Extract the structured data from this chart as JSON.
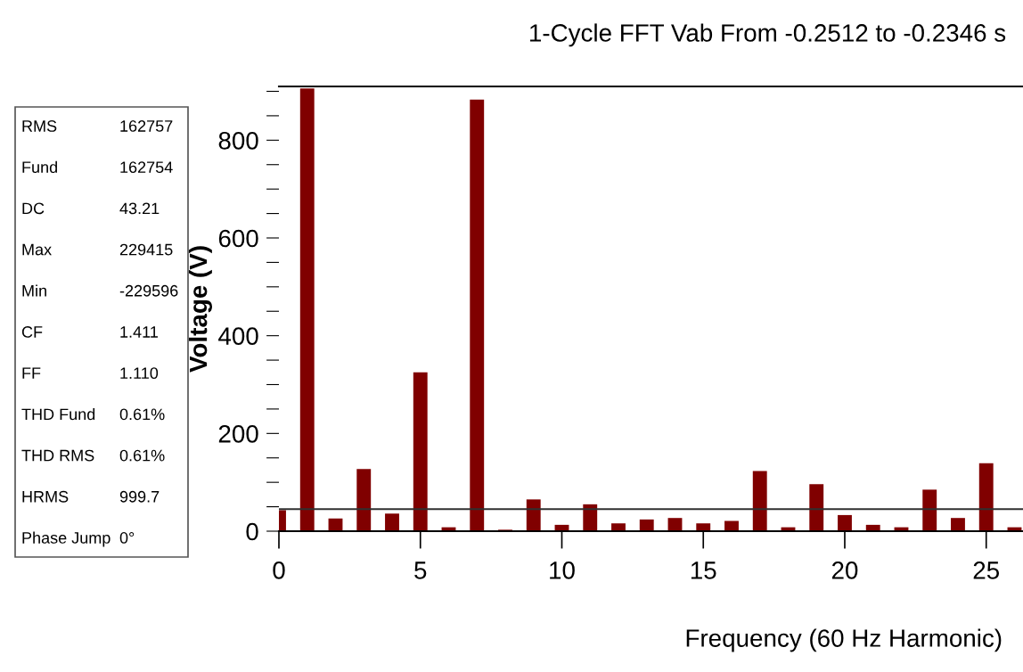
{
  "chart_data": {
    "type": "bar",
    "title": "1-Cycle FFT Vab From -0.2512 to -0.2346 s",
    "xlabel": "Frequency (60 Hz Harmonic)",
    "ylabel": "Voltage (V)",
    "x": [
      0,
      1,
      2,
      3,
      4,
      5,
      6,
      7,
      8,
      9,
      10,
      11,
      12,
      13,
      14,
      15,
      16,
      17,
      18,
      19,
      20,
      21,
      22,
      23,
      24,
      25,
      26
    ],
    "values": [
      43,
      906,
      26,
      127,
      36,
      325,
      8,
      883,
      3,
      65,
      13,
      55,
      16,
      24,
      27,
      16,
      21,
      123,
      8,
      96,
      33,
      13,
      8,
      85,
      27,
      139,
      8
    ],
    "color": "#800000",
    "xlim": [
      0,
      26.3
    ],
    "xticks": [
      0,
      5,
      10,
      15,
      20,
      25
    ],
    "ylim": [
      0,
      910
    ],
    "yticks": [
      0,
      {
        "value": 50,
        "label": null
      },
      {
        "value": 100,
        "label": null
      },
      {
        "value": 150,
        "label": null
      },
      200,
      {
        "value": 250,
        "label": null
      },
      {
        "value": 300,
        "label": null
      },
      {
        "value": 350,
        "label": null
      },
      400,
      {
        "value": 450,
        "label": null
      },
      {
        "value": 500,
        "label": null
      },
      {
        "value": 550,
        "label": null
      },
      600,
      {
        "value": 650,
        "label": null
      },
      {
        "value": 700,
        "label": null
      },
      {
        "value": 750,
        "label": null
      },
      800,
      {
        "value": 850,
        "label": null
      },
      {
        "value": 900,
        "label": null
      }
    ],
    "ref_lines": [
      {
        "axis": "y",
        "value": 45,
        "color": "#303030"
      }
    ],
    "grid": false,
    "annotations": [
      "RMS",
      "162757",
      "Fund",
      "162754",
      "DC",
      "43.21",
      "Max",
      "229415",
      "Min",
      "-229596",
      "CF",
      "1.411",
      "FF",
      "1.110",
      "THD Fund",
      "0.61%",
      "THD RMS",
      "0.61%",
      "HRMS",
      "999.7",
      "Phase Jump",
      "0°"
    ]
  }
}
